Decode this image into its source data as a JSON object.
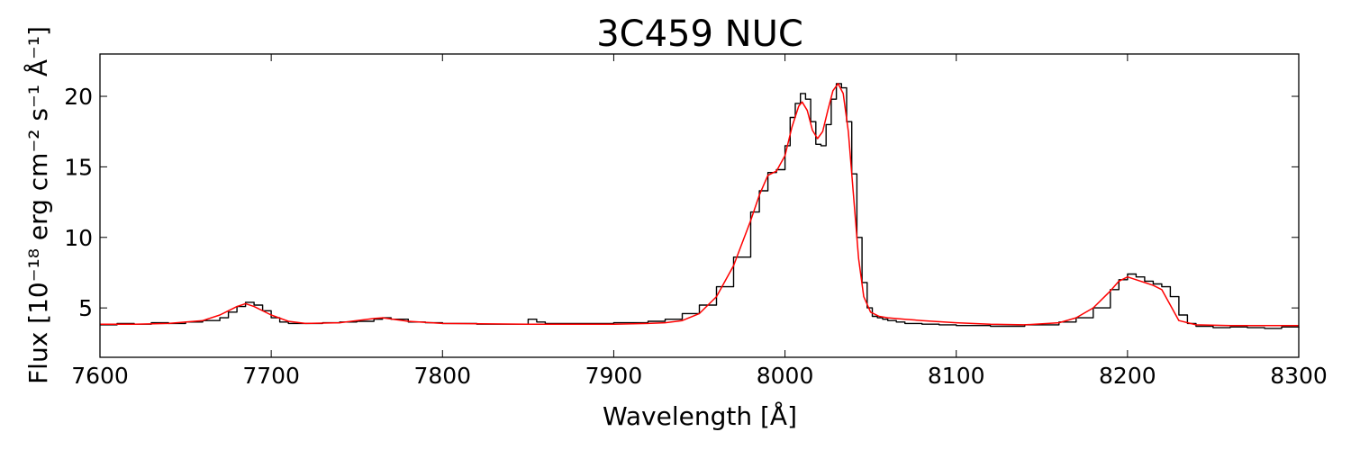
{
  "chart_data": {
    "type": "line",
    "title": "3C459 NUC",
    "xlabel": "Wavelength [Å]",
    "ylabel": "Flux [10⁻¹⁸ erg cm⁻² s⁻¹ Å⁻¹]",
    "xlim": [
      7600,
      8300
    ],
    "ylim": [
      1.5,
      23
    ],
    "xticks": [
      7600,
      7700,
      7800,
      7900,
      8000,
      8100,
      8200,
      8300
    ],
    "yticks": [
      5,
      10,
      15,
      20
    ],
    "grid": false,
    "colors": {
      "observed": "#000000",
      "model": "#ff0000"
    },
    "series": [
      {
        "style": "step",
        "color": "#000000",
        "x": [
          7600,
          7610,
          7620,
          7630,
          7640,
          7650,
          7660,
          7670,
          7675,
          7680,
          7685,
          7690,
          7695,
          7700,
          7705,
          7710,
          7720,
          7730,
          7740,
          7750,
          7760,
          7765,
          7770,
          7780,
          7790,
          7800,
          7820,
          7840,
          7850,
          7855,
          7860,
          7880,
          7900,
          7920,
          7930,
          7940,
          7950,
          7960,
          7970,
          7980,
          7985,
          7990,
          7995,
          8000,
          8003,
          8006,
          8009,
          8012,
          8015,
          8018,
          8021,
          8024,
          8027,
          8030,
          8033,
          8036,
          8039,
          8042,
          8045,
          8048,
          8051,
          8054,
          8057,
          8060,
          8065,
          8070,
          8080,
          8090,
          8100,
          8120,
          8140,
          8160,
          8170,
          8180,
          8190,
          8195,
          8200,
          8205,
          8210,
          8215,
          8220,
          8225,
          8230,
          8235,
          8240,
          8250,
          8260,
          8270,
          8280,
          8290,
          8300
        ],
        "y": [
          3.8,
          3.9,
          3.85,
          3.95,
          3.9,
          4.0,
          4.1,
          4.3,
          4.7,
          5.1,
          5.4,
          5.2,
          4.8,
          4.3,
          4.0,
          3.9,
          3.9,
          3.95,
          4.0,
          4.05,
          4.2,
          4.3,
          4.2,
          4.0,
          3.95,
          3.9,
          3.85,
          3.85,
          4.2,
          4.0,
          3.9,
          3.9,
          3.95,
          4.05,
          4.2,
          4.6,
          5.2,
          6.5,
          8.6,
          11.8,
          13.3,
          14.6,
          14.8,
          16.5,
          18.5,
          19.5,
          20.2,
          19.8,
          18.2,
          16.6,
          16.5,
          18.0,
          19.8,
          20.9,
          20.6,
          18.2,
          14.5,
          10.0,
          6.8,
          5.0,
          4.4,
          4.3,
          4.2,
          4.1,
          4.0,
          3.9,
          3.85,
          3.8,
          3.75,
          3.7,
          3.8,
          4.0,
          4.3,
          5.0,
          6.3,
          7.0,
          7.4,
          7.2,
          6.9,
          6.7,
          6.5,
          5.8,
          4.5,
          3.9,
          3.7,
          3.6,
          3.65,
          3.6,
          3.55,
          3.65,
          3.6
        ]
      },
      {
        "style": "smooth",
        "color": "#ff0000",
        "x": [
          7600,
          7620,
          7640,
          7660,
          7670,
          7680,
          7685,
          7690,
          7700,
          7710,
          7720,
          7740,
          7760,
          7765,
          7780,
          7800,
          7850,
          7900,
          7920,
          7930,
          7940,
          7950,
          7960,
          7970,
          7980,
          7985,
          7990,
          7995,
          8000,
          8004,
          8008,
          8010,
          8013,
          8016,
          8019,
          8022,
          8025,
          8028,
          8031,
          8034,
          8037,
          8040,
          8043,
          8046,
          8050,
          8055,
          8060,
          8070,
          8080,
          8100,
          8120,
          8140,
          8160,
          8170,
          8180,
          8190,
          8195,
          8200,
          8205,
          8210,
          8215,
          8220,
          8225,
          8230,
          8240,
          8260,
          8280,
          8300
        ],
        "y": [
          3.85,
          3.85,
          3.9,
          4.1,
          4.5,
          5.1,
          5.3,
          5.1,
          4.5,
          4.05,
          3.9,
          3.95,
          4.25,
          4.3,
          4.05,
          3.9,
          3.85,
          3.85,
          3.9,
          3.95,
          4.1,
          4.6,
          5.8,
          8.0,
          11.2,
          13.0,
          14.4,
          14.7,
          15.8,
          17.8,
          19.3,
          19.6,
          19.0,
          17.6,
          17.0,
          17.5,
          19.0,
          20.4,
          20.9,
          20.2,
          17.5,
          13.0,
          8.5,
          5.8,
          4.7,
          4.4,
          4.3,
          4.2,
          4.1,
          3.95,
          3.85,
          3.8,
          3.95,
          4.3,
          5.0,
          6.2,
          6.9,
          7.2,
          7.0,
          6.8,
          6.6,
          6.3,
          5.2,
          4.1,
          3.8,
          3.75,
          3.75,
          3.75
        ]
      }
    ]
  }
}
